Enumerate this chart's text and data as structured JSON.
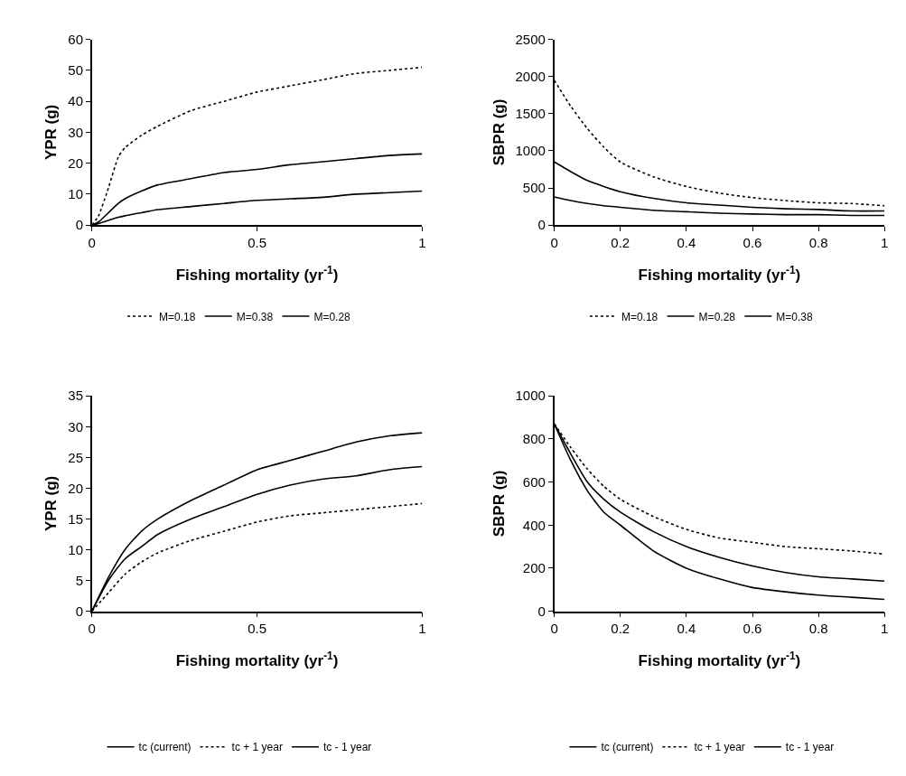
{
  "chart_data": [
    {
      "type": "line",
      "xlabel": "Fishing mortality (yr$^{-1}$)",
      "ylabel": "YPR (g)",
      "x": [
        0,
        0.02,
        0.05,
        0.08,
        0.1,
        0.15,
        0.2,
        0.3,
        0.4,
        0.5,
        0.6,
        0.7,
        0.8,
        0.9,
        1
      ],
      "xlim": [
        0,
        1
      ],
      "xticks": [
        0,
        0.5,
        1
      ],
      "ylim": [
        0,
        60
      ],
      "yticks": [
        0,
        10,
        20,
        30,
        40,
        50,
        60
      ],
      "legend": "bottom",
      "series": [
        {
          "name": "M=0.18",
          "color": "#000000",
          "line_style": "dotted",
          "values": [
            0,
            3,
            12,
            22,
            25,
            29,
            32,
            37,
            40,
            43,
            45,
            47,
            49,
            50,
            51
          ]
        },
        {
          "name": "M=0.38",
          "color": "#000000",
          "line_style": "solid",
          "values": [
            0,
            0.5,
            1.5,
            2.5,
            3,
            4,
            5,
            6,
            7,
            8,
            8.5,
            9,
            10,
            10.5,
            11
          ]
        },
        {
          "name": "M=0.28",
          "color": "#000000",
          "line_style": "solid",
          "values": [
            0,
            1,
            4,
            7,
            8.5,
            11,
            13,
            15,
            17,
            18,
            19.5,
            20.5,
            21.5,
            22.5,
            23
          ]
        }
      ]
    },
    {
      "type": "line",
      "xlabel": "Fishing mortality (yr$^{-1}$)",
      "ylabel": "SBPR (g)",
      "x": [
        0,
        0.05,
        0.1,
        0.15,
        0.2,
        0.3,
        0.4,
        0.5,
        0.6,
        0.7,
        0.8,
        0.9,
        1
      ],
      "xlim": [
        0,
        1
      ],
      "xticks": [
        0,
        0.2,
        0.4,
        0.6,
        0.8,
        1
      ],
      "ylim": [
        0,
        2500
      ],
      "yticks": [
        0,
        500,
        1000,
        1500,
        2000,
        2500
      ],
      "legend": "bottom",
      "series": [
        {
          "name": "M=0.18",
          "color": "#000000",
          "line_style": "dotted",
          "values": [
            1950,
            1600,
            1300,
            1050,
            850,
            650,
            520,
            430,
            370,
            330,
            300,
            290,
            260
          ]
        },
        {
          "name": "M=0.28",
          "color": "#000000",
          "line_style": "solid",
          "values": [
            850,
            720,
            600,
            520,
            450,
            360,
            300,
            270,
            240,
            220,
            210,
            190,
            190
          ]
        },
        {
          "name": "M=0.38",
          "color": "#000000",
          "line_style": "solid",
          "values": [
            380,
            330,
            290,
            260,
            240,
            200,
            180,
            160,
            150,
            140,
            140,
            130,
            130
          ]
        }
      ]
    },
    {
      "type": "line",
      "xlabel": "Fishing mortality (yr$^{-1}$)",
      "ylabel": "YPR (g)",
      "x": [
        0,
        0.05,
        0.1,
        0.15,
        0.2,
        0.3,
        0.4,
        0.5,
        0.6,
        0.7,
        0.8,
        0.9,
        1
      ],
      "xlim": [
        0,
        1
      ],
      "xticks": [
        0,
        0.5,
        1
      ],
      "ylim": [
        0,
        35
      ],
      "yticks": [
        0,
        5,
        10,
        15,
        20,
        25,
        30,
        35
      ],
      "legend": "bottom",
      "series": [
        {
          "name": "tc (current)",
          "color": "#000000",
          "line_style": "solid",
          "values": [
            0,
            5,
            8.5,
            10.5,
            12.5,
            15,
            17,
            19,
            20.5,
            21.5,
            22,
            23,
            23.5
          ]
        },
        {
          "name": "tc + 1 year",
          "color": "#000000",
          "line_style": "dotted",
          "values": [
            0,
            3,
            6,
            8,
            9.5,
            11.5,
            13,
            14.5,
            15.5,
            16,
            16.5,
            17,
            17.5
          ]
        },
        {
          "name": "tc - 1 year",
          "color": "#000000",
          "line_style": "solid",
          "values": [
            0,
            5.5,
            10,
            13,
            15,
            18,
            20.5,
            23,
            24.5,
            26,
            27.5,
            28.5,
            29
          ]
        }
      ]
    },
    {
      "type": "line",
      "xlabel": "Fishing mortality (yr$^{-1}$)",
      "ylabel": "SBPR (g)",
      "x": [
        0,
        0.05,
        0.1,
        0.15,
        0.2,
        0.3,
        0.4,
        0.5,
        0.6,
        0.7,
        0.8,
        0.9,
        1
      ],
      "xlim": [
        0,
        1
      ],
      "xticks": [
        0,
        0.2,
        0.4,
        0.6,
        0.8,
        1
      ],
      "ylim": [
        0,
        1000
      ],
      "yticks": [
        0,
        200,
        400,
        600,
        800,
        1000
      ],
      "legend": "bottom",
      "series": [
        {
          "name": "tc (current)",
          "color": "#000000",
          "line_style": "solid",
          "values": [
            870,
            730,
            600,
            520,
            460,
            370,
            300,
            250,
            210,
            180,
            160,
            150,
            140
          ]
        },
        {
          "name": "tc + 1 year",
          "color": "#000000",
          "line_style": "dotted",
          "values": [
            870,
            760,
            660,
            580,
            520,
            440,
            380,
            340,
            320,
            300,
            290,
            280,
            265
          ]
        },
        {
          "name": "tc - 1 year",
          "color": "#000000",
          "line_style": "solid",
          "values": [
            870,
            700,
            560,
            460,
            400,
            280,
            200,
            150,
            110,
            90,
            75,
            65,
            55
          ]
        }
      ]
    }
  ]
}
